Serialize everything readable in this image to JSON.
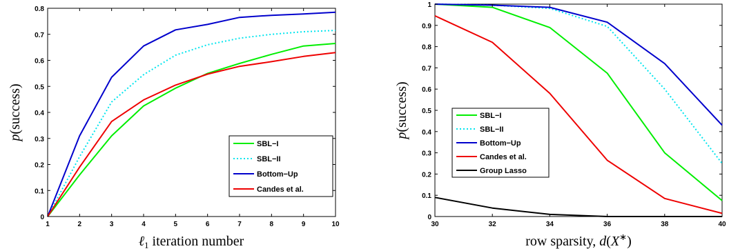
{
  "chart_data": [
    {
      "type": "line",
      "title": "",
      "xlabel": "ℓ1 iteration number",
      "ylabel": "p(success)",
      "x": [
        1,
        2,
        3,
        4,
        5,
        6,
        7,
        8,
        9,
        10
      ],
      "xlim": [
        1,
        10
      ],
      "ylim": [
        0,
        0.8
      ],
      "xticks": [
        "1",
        "2",
        "3",
        "4",
        "5",
        "6",
        "7",
        "8",
        "9",
        "10"
      ],
      "yticks": [
        "0",
        "0.1",
        "0.2",
        "0.3",
        "0.4",
        "0.5",
        "0.6",
        "0.7",
        "0.8"
      ],
      "grid": false,
      "legend_position": "right",
      "series": [
        {
          "name": "SBL−I",
          "color": "#00ee00",
          "style": "solid",
          "values": [
            0.0,
            0.16,
            0.31,
            0.425,
            0.493,
            0.55,
            0.588,
            0.623,
            0.655,
            0.665
          ]
        },
        {
          "name": "SBL−II",
          "color": "#00e5ee",
          "style": "dotted",
          "values": [
            0.0,
            0.23,
            0.44,
            0.545,
            0.62,
            0.66,
            0.685,
            0.7,
            0.71,
            0.715
          ]
        },
        {
          "name": "Bottom−Up",
          "color": "#0000cc",
          "style": "solid",
          "values": [
            0.0,
            0.31,
            0.535,
            0.655,
            0.717,
            0.738,
            0.765,
            0.773,
            0.778,
            0.785
          ]
        },
        {
          "name": "Candes et al.",
          "color": "#ee0000",
          "style": "solid",
          "values": [
            0.0,
            0.19,
            0.365,
            0.448,
            0.505,
            0.547,
            0.577,
            0.595,
            0.615,
            0.63
          ]
        }
      ]
    },
    {
      "type": "line",
      "title": "",
      "xlabel": "row sparsity, d(X*)",
      "ylabel": "p(success)",
      "x": [
        30,
        32,
        34,
        36,
        38,
        40
      ],
      "xlim": [
        30,
        40
      ],
      "ylim": [
        0,
        1
      ],
      "xticks": [
        "30",
        "32",
        "34",
        "36",
        "38",
        "40"
      ],
      "yticks": [
        "0",
        "0.1",
        "0.2",
        "0.3",
        "0.4",
        "0.5",
        "0.6",
        "0.7",
        "0.8",
        "0.9",
        "1"
      ],
      "grid": false,
      "legend_position": "left",
      "series": [
        {
          "name": "SBL−I",
          "color": "#00ee00",
          "style": "solid",
          "values": [
            1.0,
            0.985,
            0.89,
            0.675,
            0.3,
            0.075
          ]
        },
        {
          "name": "SBL−II",
          "color": "#00e5ee",
          "style": "dotted",
          "values": [
            1.0,
            0.995,
            0.98,
            0.895,
            0.6,
            0.25
          ]
        },
        {
          "name": "Bottom−Up",
          "color": "#0000cc",
          "style": "solid",
          "values": [
            1.0,
            0.995,
            0.985,
            0.915,
            0.72,
            0.43
          ]
        },
        {
          "name": "Candes et al.",
          "color": "#ee0000",
          "style": "solid",
          "values": [
            0.945,
            0.82,
            0.58,
            0.265,
            0.085,
            0.015
          ]
        },
        {
          "name": "Group Lasso",
          "color": "#000000",
          "style": "solid",
          "values": [
            0.09,
            0.04,
            0.01,
            0.0,
            0.0,
            0.0
          ]
        }
      ]
    }
  ]
}
